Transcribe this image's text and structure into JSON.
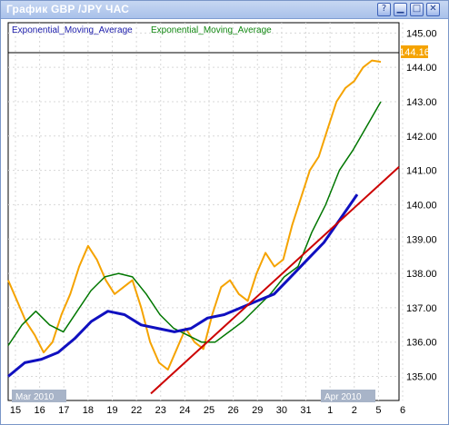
{
  "window": {
    "title": "График GBP /JPY  ЧАС",
    "controls": [
      {
        "name": "help",
        "glyph": "?"
      },
      {
        "name": "minimize",
        "glyph": "▁"
      },
      {
        "name": "maximize",
        "glyph": "□"
      },
      {
        "name": "close",
        "glyph": "✕"
      }
    ]
  },
  "indicators": {
    "ema1_label": "Exponential_Moving_Average",
    "ema2_label": "Exponential_Moving_Average",
    "ema1_color": "#1a1aaa",
    "ema2_color": "#118811"
  },
  "colors": {
    "price": "#f5a300",
    "ema_fast": "#007700",
    "ema_slow": "#1010c0",
    "trendline": "#cc0000",
    "current_price_bg": "#f5a300",
    "month_label_bg": "#a8b4c8"
  },
  "current_price": "144.16",
  "month_labels": [
    "Mar 2010",
    "Apr 2010"
  ],
  "chart_data": {
    "type": "line",
    "title": "",
    "ylim": [
      134.3,
      145.3
    ],
    "yticks": [
      "145.00",
      "144.00",
      "143.00",
      "142.00",
      "141.00",
      "140.00",
      "139.00",
      "138.00",
      "137.00",
      "136.00",
      "135.00"
    ],
    "xticks": [
      "15",
      "16",
      "17",
      "18",
      "19",
      "22",
      "23",
      "24",
      "25",
      "26",
      "29",
      "30",
      "31",
      "1",
      "2",
      "5",
      "6"
    ],
    "grid": true,
    "series": [
      {
        "name": "price",
        "points": [
          [
            0,
            137.8
          ],
          [
            1,
            137.2
          ],
          [
            2,
            136.6
          ],
          [
            3,
            136.2
          ],
          [
            4,
            135.7
          ],
          [
            5,
            136.0
          ],
          [
            6,
            136.8
          ],
          [
            7,
            137.4
          ],
          [
            8,
            138.2
          ],
          [
            9,
            138.8
          ],
          [
            10,
            138.4
          ],
          [
            11,
            137.8
          ],
          [
            12,
            137.4
          ],
          [
            13,
            137.6
          ],
          [
            14,
            137.8
          ],
          [
            15,
            137.0
          ],
          [
            16,
            136.0
          ],
          [
            17,
            135.4
          ],
          [
            18,
            135.2
          ],
          [
            19,
            135.8
          ],
          [
            20,
            136.4
          ],
          [
            21,
            136.0
          ],
          [
            22,
            135.8
          ],
          [
            23,
            136.8
          ],
          [
            24,
            137.6
          ],
          [
            25,
            137.8
          ],
          [
            26,
            137.4
          ],
          [
            27,
            137.2
          ],
          [
            28,
            138.0
          ],
          [
            29,
            138.6
          ],
          [
            30,
            138.2
          ],
          [
            31,
            138.4
          ],
          [
            32,
            139.4
          ],
          [
            33,
            140.2
          ],
          [
            34,
            141.0
          ],
          [
            35,
            141.4
          ],
          [
            36,
            142.2
          ],
          [
            37,
            143.0
          ],
          [
            38,
            143.4
          ],
          [
            39,
            143.6
          ],
          [
            40,
            144.0
          ],
          [
            41,
            144.2
          ],
          [
            42,
            144.16
          ]
        ]
      },
      {
        "name": "",
        "points": [
          [
            0,
            135.9
          ],
          [
            1,
            136.5
          ],
          [
            2,
            136.9
          ],
          [
            3,
            136.5
          ],
          [
            4,
            136.3
          ],
          [
            5,
            136.9
          ],
          [
            6,
            137.5
          ],
          [
            7,
            137.9
          ],
          [
            8,
            138.0
          ],
          [
            9,
            137.9
          ],
          [
            10,
            137.4
          ],
          [
            11,
            136.8
          ],
          [
            12,
            136.4
          ],
          [
            13,
            136.2
          ],
          [
            14,
            136.0
          ],
          [
            15,
            136.0
          ],
          [
            16,
            136.3
          ],
          [
            17,
            136.6
          ],
          [
            18,
            137.0
          ],
          [
            19,
            137.4
          ],
          [
            20,
            137.9
          ],
          [
            21,
            138.2
          ],
          [
            22,
            139.2
          ],
          [
            23,
            140.0
          ],
          [
            24,
            141.0
          ],
          [
            25,
            141.6
          ],
          [
            26,
            142.3
          ],
          [
            27,
            143.0
          ]
        ]
      },
      {
        "name": "",
        "points": [
          [
            0,
            135.0
          ],
          [
            1,
            135.4
          ],
          [
            2,
            135.5
          ],
          [
            3,
            135.7
          ],
          [
            4,
            136.1
          ],
          [
            5,
            136.6
          ],
          [
            6,
            136.9
          ],
          [
            7,
            136.8
          ],
          [
            8,
            136.5
          ],
          [
            9,
            136.4
          ],
          [
            10,
            136.3
          ],
          [
            11,
            136.4
          ],
          [
            12,
            136.7
          ],
          [
            13,
            136.8
          ],
          [
            14,
            137.0
          ],
          [
            15,
            137.2
          ],
          [
            16,
            137.4
          ],
          [
            17,
            137.9
          ],
          [
            18,
            138.4
          ],
          [
            19,
            138.9
          ],
          [
            20,
            139.6
          ],
          [
            21,
            140.3
          ]
        ]
      },
      {
        "name": "",
        "points": [
          [
            0,
            134.5
          ],
          [
            1,
            141.1
          ]
        ]
      }
    ]
  }
}
